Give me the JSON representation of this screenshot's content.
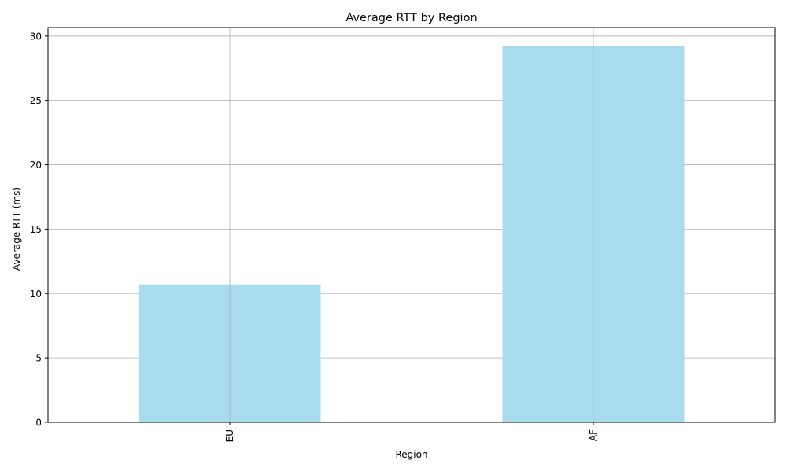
{
  "chart_data": {
    "type": "bar",
    "title": "Average RTT by Region",
    "xlabel": "Region",
    "ylabel": "Average RTT (ms)",
    "categories": [
      "EU",
      "AF"
    ],
    "values": [
      10.7,
      29.2
    ],
    "ylim": [
      0,
      30.66
    ],
    "yticks": [
      0,
      5,
      10,
      15,
      20,
      25,
      30
    ],
    "grid": true,
    "bar_color": "#a8dbee",
    "x_tick_rotation": "vertical"
  }
}
